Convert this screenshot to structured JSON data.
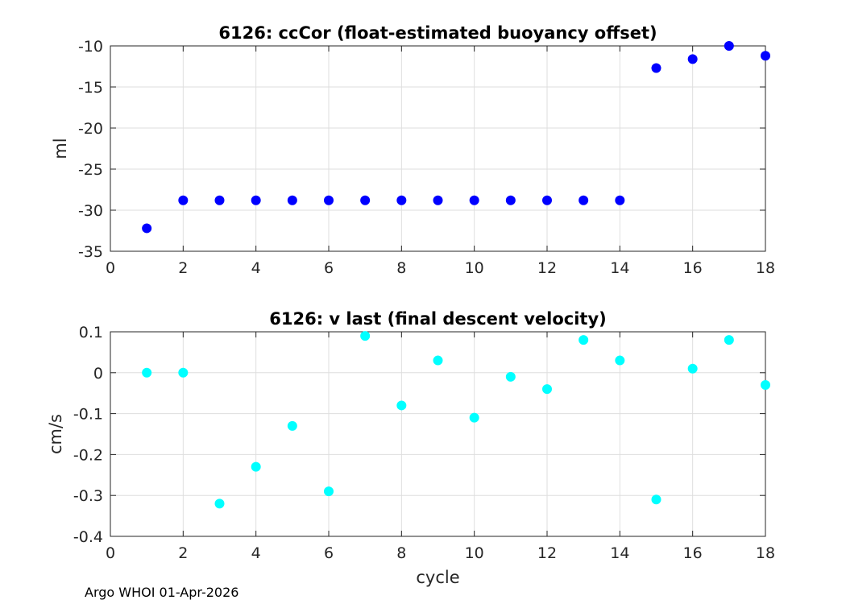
{
  "figure": {
    "footer": "Argo WHOI 01-Apr-2026"
  },
  "chart_data": [
    {
      "type": "scatter",
      "title": "6126: ccCor (float-estimated buoyancy offset)",
      "xlabel": "",
      "ylabel": "ml",
      "xlim": [
        0,
        18
      ],
      "ylim": [
        -35,
        -10
      ],
      "xticks": [
        0,
        2,
        4,
        6,
        8,
        10,
        12,
        14,
        16,
        18
      ],
      "yticks": [
        -35,
        -30,
        -25,
        -20,
        -15,
        -10
      ],
      "grid": true,
      "color": "#0000ff",
      "x": [
        1,
        2,
        3,
        4,
        5,
        6,
        7,
        8,
        9,
        10,
        11,
        12,
        13,
        14,
        15,
        16,
        17,
        18
      ],
      "y": [
        -32.2,
        -28.8,
        -28.8,
        -28.8,
        -28.8,
        -28.8,
        -28.8,
        -28.8,
        -28.8,
        -28.8,
        -28.8,
        -28.8,
        -28.8,
        -28.8,
        -12.7,
        -11.6,
        -10.0,
        -11.2
      ]
    },
    {
      "type": "scatter",
      "title": "6126: v last (final descent velocity)",
      "xlabel": "cycle",
      "ylabel": "cm/s",
      "xlim": [
        0,
        18
      ],
      "ylim": [
        -0.4,
        0.1
      ],
      "xticks": [
        0,
        2,
        4,
        6,
        8,
        10,
        12,
        14,
        16,
        18
      ],
      "yticks": [
        -0.4,
        -0.3,
        -0.2,
        -0.1,
        0,
        0.1
      ],
      "grid": true,
      "color": "#00ffff",
      "x": [
        1,
        2,
        3,
        4,
        5,
        6,
        7,
        8,
        9,
        10,
        11,
        12,
        13,
        14,
        15,
        16,
        17,
        18
      ],
      "y": [
        0.0,
        0.0,
        -0.32,
        -0.23,
        -0.13,
        -0.29,
        0.09,
        -0.08,
        0.03,
        -0.11,
        -0.01,
        -0.04,
        0.08,
        0.03,
        -0.31,
        0.01,
        0.08,
        -0.03
      ]
    }
  ]
}
